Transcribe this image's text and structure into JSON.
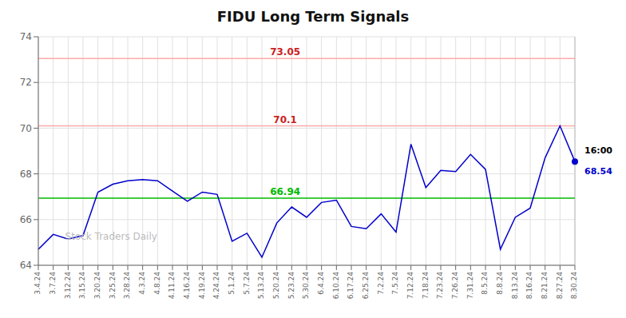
{
  "chart_data": {
    "type": "line",
    "title": "FIDU Long Term Signals",
    "categories": [
      "3.4.24",
      "3.7.24",
      "3.12.24",
      "3.15.24",
      "3.20.24",
      "3.25.24",
      "3.28.24",
      "4.3.24",
      "4.8.24",
      "4.11.24",
      "4.16.24",
      "4.19.24",
      "4.24.24",
      "5.1.24",
      "5.7.24",
      "5.13.24",
      "5.20.24",
      "5.23.24",
      "5.30.24",
      "6.4.24",
      "6.10.24",
      "6.17.24",
      "6.25.24",
      "7.2.24",
      "7.5.24",
      "7.12.24",
      "7.18.24",
      "7.23.24",
      "7.26.24",
      "7.31.24",
      "8.5.24",
      "8.8.24",
      "8.13.24",
      "8.16.24",
      "8.21.24",
      "8.27.24",
      "8.30.24"
    ],
    "values": [
      64.7,
      65.35,
      65.15,
      65.3,
      67.2,
      67.55,
      67.7,
      67.75,
      67.7,
      67.25,
      66.8,
      67.2,
      67.1,
      65.05,
      65.4,
      64.35,
      65.85,
      66.55,
      66.1,
      66.75,
      66.85,
      65.7,
      65.6,
      66.25,
      65.45,
      69.3,
      67.4,
      68.15,
      68.1,
      68.85,
      68.2,
      64.7,
      66.1,
      66.5,
      68.7,
      70.1,
      68.54
    ],
    "color": "#0000cc",
    "ylim": [
      64,
      74
    ],
    "yticks": [
      64,
      66,
      68,
      70,
      72,
      74
    ],
    "grid": true,
    "hlines": [
      {
        "value": 73.05,
        "label": "73.05",
        "color": "#ffaaaa",
        "label_color": "#cc2222"
      },
      {
        "value": 70.1,
        "label": "70.1",
        "color": "#ffaaaa",
        "label_color": "#cc2222"
      },
      {
        "value": 66.94,
        "label": "66.94",
        "color": "#00bb00",
        "label_color": "#00bb00"
      }
    ],
    "last_point": {
      "value": 68.54,
      "time": "16:00",
      "label": "68.54"
    },
    "watermark": "Stock Traders Daily",
    "watermark_color": "#bbbbbb"
  }
}
